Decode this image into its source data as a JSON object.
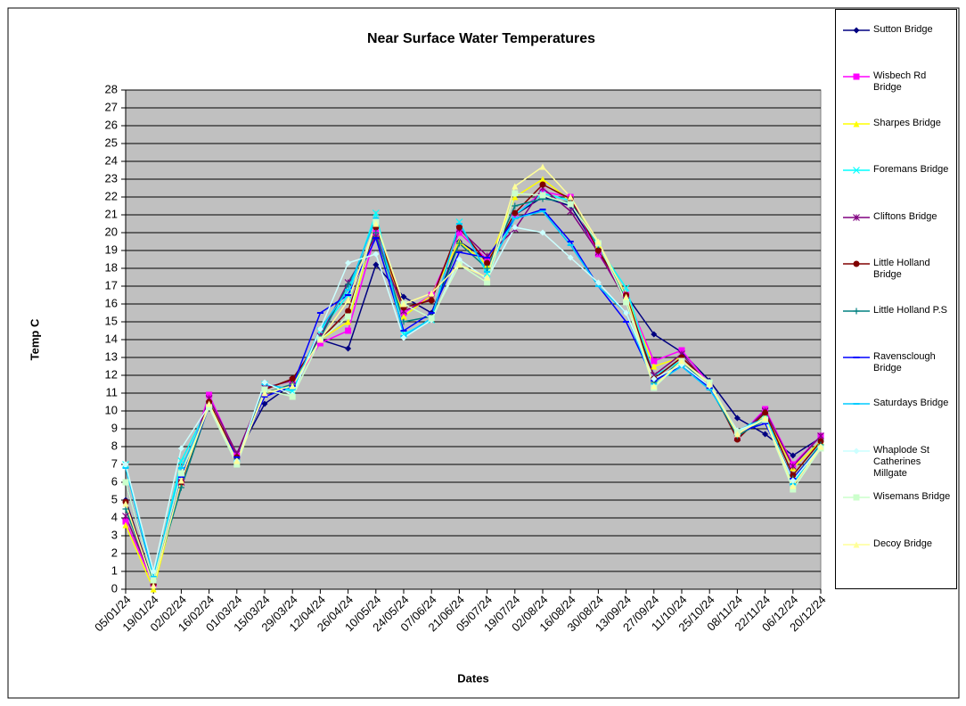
{
  "chart_data": {
    "type": "line",
    "title": "Near Surface Water Temperatures",
    "x_label": "Dates",
    "y_label": "Temp C",
    "categories": [
      "05/01/24",
      "19/01/24",
      "02/02/24",
      "16/02/24",
      "01/03/24",
      "15/03/24",
      "29/03/24",
      "12/04/24",
      "26/04/24",
      "10/05/24",
      "24/05/24",
      "07/06/24",
      "21/06/24",
      "05/07/24",
      "19/07/24",
      "02/08/24",
      "16/08/24",
      "30/08/24",
      "13/09/24",
      "27/09/24",
      "11/10/24",
      "25/10/24",
      "08/11/24",
      "22/11/24",
      "06/12/24",
      "20/12/24"
    ],
    "ylim": [
      0,
      28
    ],
    "yticks": [
      0,
      1,
      2,
      3,
      4,
      5,
      6,
      7,
      8,
      9,
      10,
      11,
      12,
      13,
      14,
      15,
      16,
      17,
      18,
      19,
      20,
      21,
      22,
      23,
      24,
      25,
      26,
      27,
      28
    ],
    "grid": true,
    "plot_background": "#c0c0c0",
    "legend": "right",
    "series": [
      {
        "name": "Sutton Bridge",
        "color": "#000080",
        "marker": "diamond",
        "values": [
          5,
          0.3,
          6,
          10.3,
          7.5,
          10.4,
          11.5,
          14,
          13.5,
          18.2,
          16.4,
          15.5,
          19.5,
          18.5,
          21,
          22,
          21.5,
          19,
          16.5,
          14.3,
          13.3,
          11.7,
          9.6,
          8.7,
          7.5,
          8.5
        ]
      },
      {
        "name": "Wisbech Rd Bridge",
        "color": "#ff00ff",
        "marker": "square",
        "values": [
          3.8,
          0.3,
          6,
          10.9,
          7.5,
          11,
          11.5,
          13.8,
          14.5,
          20,
          15.5,
          16.5,
          20,
          18.5,
          21,
          22.3,
          22,
          18.8,
          16.5,
          12.8,
          13.4,
          11.5,
          8.5,
          10.1,
          7,
          8.6
        ]
      },
      {
        "name": "Sharpes Bridge",
        "color": "#ffff00",
        "marker": "triangle",
        "values": [
          3.6,
          0,
          6,
          10.5,
          7.3,
          11,
          11.5,
          14,
          15,
          20.5,
          15.3,
          16.5,
          19.5,
          18.2,
          22,
          23,
          21.8,
          19.3,
          16.5,
          12.5,
          13,
          11.5,
          8.6,
          9.8,
          6.8,
          8.3
        ]
      },
      {
        "name": "Foremans Bridge",
        "color": "#00ffff",
        "marker": "x",
        "values": [
          7,
          0.5,
          7.2,
          10.3,
          7.3,
          11.5,
          11.1,
          14.5,
          16.5,
          21.1,
          14.3,
          15.1,
          20.6,
          17.7,
          21,
          22.2,
          21.8,
          19.2,
          16.9,
          12,
          12.8,
          11.5,
          8.8,
          9.8,
          6,
          8.2
        ]
      },
      {
        "name": "Cliftons Bridge",
        "color": "#800080",
        "marker": "star",
        "values": [
          4.1,
          0.4,
          6,
          10.7,
          7.6,
          11.3,
          11.7,
          14.2,
          17.2,
          19.8,
          15.6,
          16.3,
          20.2,
          18.7,
          20.2,
          22.5,
          21.2,
          18.9,
          16.2,
          12,
          13.2,
          11.4,
          8.5,
          10,
          6.9,
          8.6
        ]
      },
      {
        "name": "Little Holland Bridge",
        "color": "#800000",
        "marker": "circle",
        "values": [
          4.9,
          0.3,
          6,
          10.5,
          7.4,
          11.2,
          11.8,
          14,
          15.6,
          20.3,
          15.8,
          16.2,
          20.3,
          18.3,
          21.1,
          22.7,
          21.9,
          19,
          16.5,
          11.8,
          13,
          11.5,
          8.4,
          9.9,
          6.4,
          8.3
        ]
      },
      {
        "name": "Little Holland P.S",
        "color": "#008080",
        "marker": "plus",
        "values": [
          4.5,
          0.4,
          5.7,
          10.3,
          7.3,
          11,
          11.5,
          14.1,
          17.1,
          20,
          15,
          15.3,
          19.4,
          18,
          21.5,
          21.9,
          21.7,
          19.3,
          16.3,
          11.6,
          12.8,
          11.3,
          8.6,
          9.5,
          6.2,
          8.1
        ]
      },
      {
        "name": "Ravensclough Bridge",
        "color": "#0000ff",
        "marker": "dash",
        "values": [
          6,
          0.6,
          6.3,
          10.2,
          7.4,
          10.8,
          11.4,
          15.5,
          16.5,
          19.7,
          14.5,
          15.5,
          18.9,
          18.6,
          20.8,
          21.3,
          19.5,
          17,
          15,
          11.7,
          12.5,
          11.3,
          8.8,
          9.3,
          6.2,
          8
        ]
      },
      {
        "name": "Saturdays Bridge",
        "color": "#00ccff",
        "marker": "dash",
        "values": [
          6.8,
          0.7,
          6.8,
          10.2,
          7.2,
          11.5,
          11.2,
          14.6,
          16.8,
          20.8,
          14.2,
          15.2,
          20.5,
          17.8,
          20.8,
          21.2,
          19.3,
          17,
          15.5,
          11.5,
          12.5,
          11.2,
          8.9,
          9.6,
          5.9,
          8
        ]
      },
      {
        "name": "Whaplode St Catherines Millgate",
        "color": "#ccffff",
        "marker": "diamond",
        "values": [
          7,
          1,
          7.9,
          10.3,
          7.2,
          11.6,
          10.9,
          14.6,
          18.3,
          18.8,
          14.1,
          15.1,
          18.5,
          17.4,
          20.3,
          20,
          18.6,
          17.2,
          15.5,
          11.8,
          12.6,
          11.4,
          8.9,
          9.5,
          6.1,
          8
        ]
      },
      {
        "name": "Wisemans Bridge",
        "color": "#ccffcc",
        "marker": "square",
        "values": [
          6,
          0.5,
          6.5,
          10.2,
          7,
          11.2,
          10.8,
          14,
          15.3,
          20.6,
          16,
          15.2,
          18.2,
          17.2,
          22.2,
          22.1,
          21.6,
          19.4,
          16.1,
          11.3,
          12.8,
          11.6,
          8.8,
          9.5,
          5.6,
          7.9
        ]
      },
      {
        "name": "Decoy Bridge",
        "color": "#ffff99",
        "marker": "triangle",
        "values": [
          4.8,
          0.2,
          6.1,
          10.4,
          7.2,
          11,
          11.4,
          14,
          16.2,
          20.5,
          16,
          16.6,
          18.2,
          17.5,
          22.6,
          23.7,
          22,
          19.5,
          16.4,
          11.4,
          12.8,
          11.5,
          8.7,
          9.6,
          5.8,
          8
        ]
      }
    ]
  }
}
